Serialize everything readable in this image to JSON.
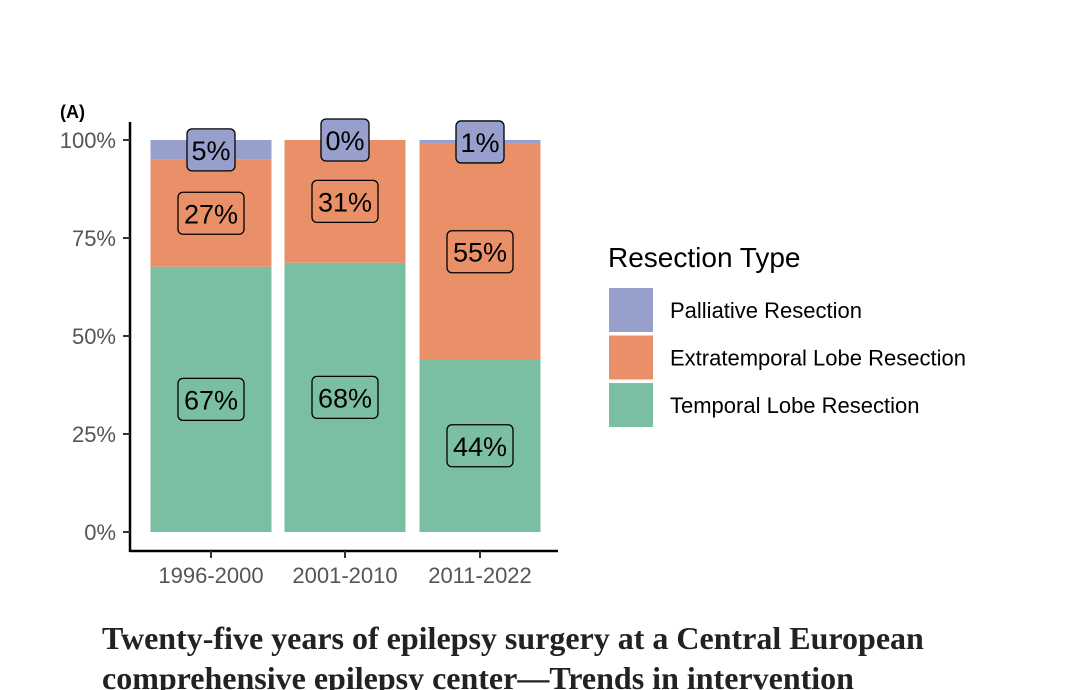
{
  "panel_label": "(A)",
  "paper_title": {
    "line1": "Twenty-five years of epilepsy surgery at a Central European",
    "line2": "comprehensive epilepsy center—Trends in intervention"
  },
  "chart_data": {
    "type": "bar",
    "stacked": true,
    "percent": true,
    "categories": [
      "1996-2000",
      "2001-2010",
      "2011-2022"
    ],
    "series": [
      {
        "name": "Temporal Lobe Resection",
        "values": [
          67,
          68,
          44
        ],
        "labels": [
          "67%",
          "68%",
          "44%"
        ],
        "color": "#7bbfa3"
      },
      {
        "name": "Extratemporal Lobe Resection",
        "values": [
          27,
          31,
          55
        ],
        "labels": [
          "27%",
          "31%",
          "55%"
        ],
        "color": "#ea9069"
      },
      {
        "name": "Palliative Resection",
        "values": [
          5,
          0,
          1
        ],
        "labels": [
          "5%",
          "0%",
          "1%"
        ],
        "color": "#97a0cc"
      }
    ],
    "ylim": [
      0,
      100
    ],
    "yticks": [
      "0%",
      "25%",
      "50%",
      "75%",
      "100%"
    ],
    "xlabel": "",
    "ylabel": "",
    "legend": {
      "title": "Resection Type",
      "position": "right",
      "order": [
        "Palliative Resection",
        "Extratemporal Lobe Resection",
        "Temporal Lobe Resection"
      ]
    },
    "grid": false
  }
}
